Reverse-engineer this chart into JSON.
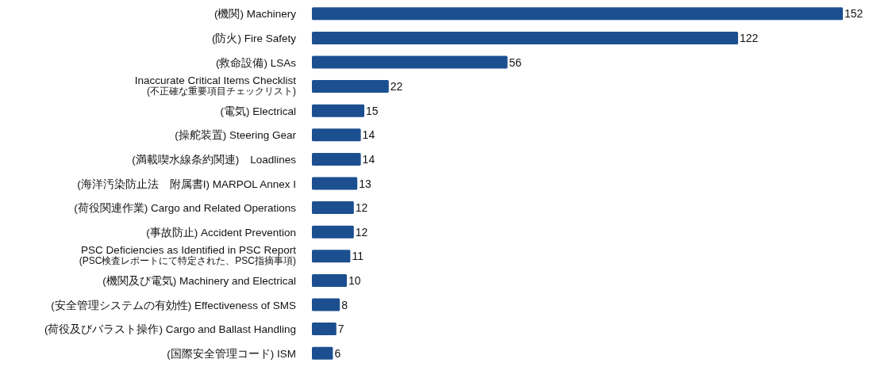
{
  "chart_data": {
    "type": "bar",
    "orientation": "horizontal",
    "data_labels": true,
    "color": "#1c4f8f",
    "categories": [
      "(機関) Machinery",
      "(防火) Fire Safety",
      "(救命設備) LSAs",
      "Inaccurate Critical Items Checklist\n(不正確な重要項目チェックリスト)",
      "(電気) Electrical",
      "(操舵装置) Steering Gear",
      "(満載喫水線条約関連)　Loadlines",
      "(海洋汚染防止法　附属書I) MARPOL Annex I",
      "(荷役関連作業) Cargo and Related Operations",
      "(事故防止) Accident Prevention",
      "PSC Deficiencies as Identified in PSC Report\n(PSC検査レポートにて特定された、PSC指摘事項)",
      "(機関及び電気) Machinery and Electrical",
      "(安全管理システムの有効性) Effectiveness of SMS",
      "(荷役及びバラスト操作) Cargo and Ballast Handling",
      "(国際安全管理コード) ISM"
    ],
    "values": [
      152,
      122,
      56,
      22,
      15,
      14,
      14,
      13,
      12,
      12,
      11,
      10,
      8,
      7,
      6
    ]
  }
}
